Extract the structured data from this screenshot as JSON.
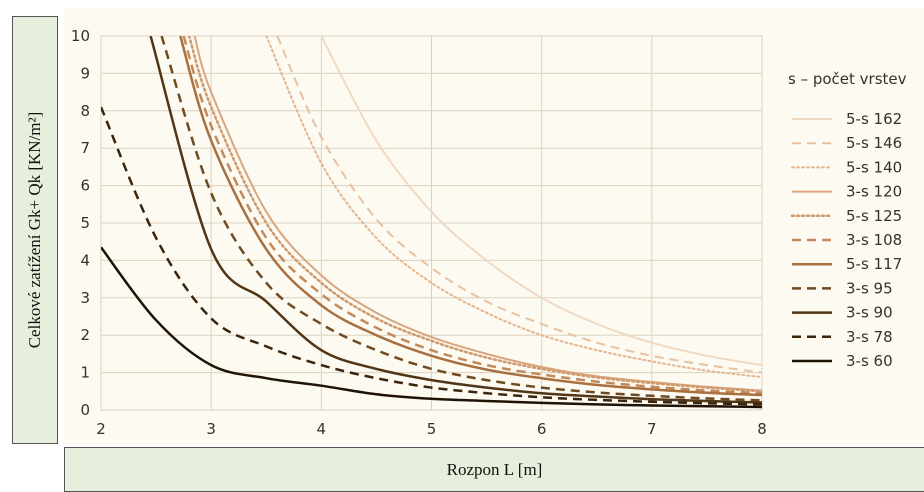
{
  "chart_data": {
    "type": "line",
    "title": "",
    "xlabel": "Rozpon L [m]",
    "ylabel": "Celkové zatížení Gk+ Qk [KN/m²]",
    "xlim": [
      2,
      8
    ],
    "ylim": [
      0,
      10
    ],
    "xticks": [
      "2",
      "3",
      "4",
      "5",
      "6",
      "7",
      "8"
    ],
    "yticks": [
      "0",
      "1",
      "2",
      "3",
      "4",
      "5",
      "6",
      "7",
      "8",
      "9",
      "10"
    ],
    "grid": true,
    "legend_title": "s – počet vrstev",
    "legend_position": "right",
    "series": [
      {
        "name": "5-s 162",
        "color": "#efd9c2",
        "dash": "solid",
        "width": 2,
        "points": [
          [
            4.0,
            10
          ],
          [
            4.5,
            7.2
          ],
          [
            5.0,
            5.3
          ],
          [
            5.5,
            4.0
          ],
          [
            6.0,
            3.0
          ],
          [
            6.5,
            2.3
          ],
          [
            7.0,
            1.8
          ],
          [
            7.5,
            1.45
          ],
          [
            8.0,
            1.2
          ]
        ]
      },
      {
        "name": "5-s 146",
        "color": "#e6c2a0",
        "dash": "dash",
        "width": 2,
        "points": [
          [
            3.6,
            10
          ],
          [
            4.0,
            7.3
          ],
          [
            4.5,
            5.1
          ],
          [
            5.0,
            3.8
          ],
          [
            5.5,
            2.9
          ],
          [
            6.0,
            2.3
          ],
          [
            6.5,
            1.8
          ],
          [
            7.0,
            1.45
          ],
          [
            7.5,
            1.2
          ],
          [
            8.0,
            1.0
          ]
        ]
      },
      {
        "name": "5-s 140",
        "color": "#e3b591",
        "dash": "dot",
        "width": 2,
        "points": [
          [
            3.5,
            10
          ],
          [
            4.0,
            6.6
          ],
          [
            4.5,
            4.6
          ],
          [
            5.0,
            3.4
          ],
          [
            5.5,
            2.6
          ],
          [
            6.0,
            2.0
          ],
          [
            6.5,
            1.6
          ],
          [
            7.0,
            1.3
          ],
          [
            7.5,
            1.05
          ],
          [
            8.0,
            0.88
          ]
        ]
      },
      {
        "name": "3-s 120",
        "color": "#d9a57f",
        "dash": "solid",
        "width": 2,
        "points": [
          [
            2.85,
            10
          ],
          [
            3.0,
            8.5
          ],
          [
            3.5,
            5.3
          ],
          [
            4.0,
            3.6
          ],
          [
            4.5,
            2.6
          ],
          [
            5.0,
            1.95
          ],
          [
            5.5,
            1.5
          ],
          [
            6.0,
            1.15
          ],
          [
            6.5,
            0.9
          ],
          [
            7.0,
            0.75
          ],
          [
            7.5,
            0.62
          ],
          [
            8.0,
            0.52
          ]
        ]
      },
      {
        "name": "5-s 125",
        "color": "#cf9a6d",
        "dash": "dot",
        "width": 2.5,
        "points": [
          [
            2.8,
            10
          ],
          [
            3.0,
            8.1
          ],
          [
            3.5,
            5.0
          ],
          [
            4.0,
            3.4
          ],
          [
            4.5,
            2.45
          ],
          [
            5.0,
            1.85
          ],
          [
            5.5,
            1.4
          ],
          [
            6.0,
            1.1
          ],
          [
            6.5,
            0.87
          ],
          [
            7.0,
            0.72
          ],
          [
            7.5,
            0.6
          ],
          [
            8.0,
            0.5
          ]
        ]
      },
      {
        "name": "3-s 108",
        "color": "#c2895b",
        "dash": "dash",
        "width": 2.5,
        "points": [
          [
            2.75,
            10
          ],
          [
            3.0,
            7.6
          ],
          [
            3.5,
            4.6
          ],
          [
            4.0,
            3.1
          ],
          [
            4.5,
            2.2
          ],
          [
            5.0,
            1.6
          ],
          [
            5.5,
            1.2
          ],
          [
            6.0,
            0.95
          ],
          [
            6.5,
            0.76
          ],
          [
            7.0,
            0.62
          ],
          [
            7.5,
            0.52
          ],
          [
            8.0,
            0.45
          ]
        ]
      },
      {
        "name": "5-s 117",
        "color": "#a8703f",
        "dash": "solid",
        "width": 2.5,
        "points": [
          [
            2.72,
            10
          ],
          [
            3.0,
            7.2
          ],
          [
            3.5,
            4.3
          ],
          [
            4.0,
            2.8
          ],
          [
            4.5,
            2.0
          ],
          [
            5.0,
            1.45
          ],
          [
            5.5,
            1.08
          ],
          [
            6.0,
            0.85
          ],
          [
            6.5,
            0.67
          ],
          [
            7.0,
            0.55
          ],
          [
            7.5,
            0.46
          ],
          [
            8.0,
            0.4
          ]
        ]
      },
      {
        "name": "3-s 95",
        "color": "#6e4a22",
        "dash": "dash",
        "width": 2.5,
        "points": [
          [
            2.55,
            10
          ],
          [
            3.0,
            5.8
          ],
          [
            3.5,
            3.4
          ],
          [
            4.0,
            2.3
          ],
          [
            4.5,
            1.6
          ],
          [
            5.0,
            1.1
          ],
          [
            5.5,
            0.8
          ],
          [
            6.0,
            0.6
          ],
          [
            6.5,
            0.47
          ],
          [
            7.0,
            0.38
          ],
          [
            7.5,
            0.31
          ],
          [
            8.0,
            0.26
          ]
        ]
      },
      {
        "name": "3-s 90",
        "color": "#503517",
        "dash": "solid",
        "width": 2.5,
        "points": [
          [
            2.45,
            10
          ],
          [
            3.0,
            4.3
          ],
          [
            3.5,
            2.9
          ],
          [
            4.0,
            1.6
          ],
          [
            4.5,
            1.1
          ],
          [
            5.0,
            0.8
          ],
          [
            5.5,
            0.6
          ],
          [
            6.0,
            0.45
          ],
          [
            6.5,
            0.36
          ],
          [
            7.0,
            0.29
          ],
          [
            7.5,
            0.24
          ],
          [
            8.0,
            0.2
          ]
        ]
      },
      {
        "name": "3-s 78",
        "color": "#3a240c",
        "dash": "dash",
        "width": 2.5,
        "points": [
          [
            2.0,
            8.1
          ],
          [
            2.5,
            4.6
          ],
          [
            3.0,
            2.45
          ],
          [
            3.5,
            1.7
          ],
          [
            4.0,
            1.2
          ],
          [
            4.5,
            0.85
          ],
          [
            5.0,
            0.6
          ],
          [
            5.5,
            0.45
          ],
          [
            6.0,
            0.34
          ],
          [
            6.5,
            0.27
          ],
          [
            7.0,
            0.22
          ],
          [
            7.5,
            0.18
          ],
          [
            8.0,
            0.15
          ]
        ]
      },
      {
        "name": "3-s 60",
        "color": "#1f1306",
        "dash": "solid",
        "width": 2.5,
        "points": [
          [
            2.0,
            4.35
          ],
          [
            2.5,
            2.4
          ],
          [
            3.0,
            1.2
          ],
          [
            3.5,
            0.85
          ],
          [
            4.0,
            0.65
          ],
          [
            4.5,
            0.42
          ],
          [
            5.0,
            0.3
          ],
          [
            5.5,
            0.24
          ],
          [
            6.0,
            0.19
          ],
          [
            6.5,
            0.15
          ],
          [
            7.0,
            0.12
          ],
          [
            7.5,
            0.1
          ],
          [
            8.0,
            0.08
          ]
        ]
      }
    ]
  }
}
